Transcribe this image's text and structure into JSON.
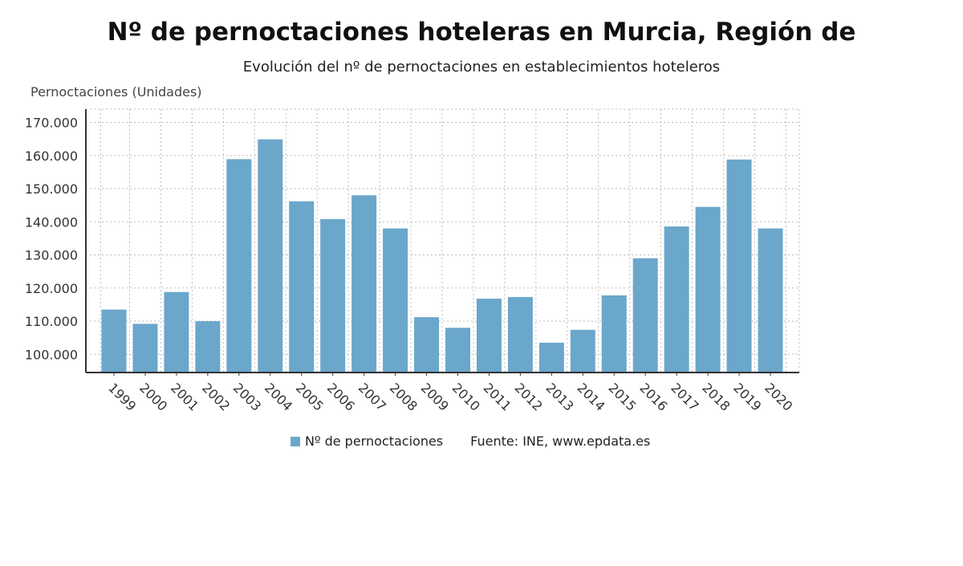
{
  "header": {
    "title": "Nº de pernoctaciones hoteleras en Murcia, Región de",
    "subtitle": "Evolución del nº de pernoctaciones en establecimientos hoteleros"
  },
  "legend": {
    "label": "Nº de pernoctaciones",
    "source": "Fuente: INE, www.epdata.es"
  },
  "colors": {
    "bar": "#6ba7cb",
    "grid": "#bbbbbb",
    "axis": "#333333"
  },
  "chart_data": {
    "type": "bar",
    "ylabel": "Pernoctaciones (Unidades)",
    "xlabel": "",
    "ylim": [
      94500,
      174000
    ],
    "yticks": [
      100000,
      110000,
      120000,
      130000,
      140000,
      150000,
      160000,
      170000
    ],
    "ytick_labels": [
      "100.000",
      "110.000",
      "120.000",
      "130.000",
      "140.000",
      "150.000",
      "160.000",
      "170.000"
    ],
    "grid": true,
    "legend_position": "bottom",
    "categories": [
      "1999",
      "2000",
      "2001",
      "2002",
      "2003",
      "2004",
      "2005",
      "2006",
      "2007",
      "2008",
      "2009",
      "2010",
      "2011",
      "2012",
      "2013",
      "2014",
      "2015",
      "2016",
      "2017",
      "2018",
      "2019",
      "2020"
    ],
    "series": [
      {
        "name": "Nº de pernoctaciones",
        "values": [
          113500,
          109200,
          118800,
          110000,
          158900,
          164900,
          146200,
          140800,
          148000,
          138000,
          111200,
          108000,
          116800,
          117300,
          103500,
          107400,
          117800,
          129000,
          138600,
          144500,
          158800,
          138000
        ]
      }
    ]
  }
}
